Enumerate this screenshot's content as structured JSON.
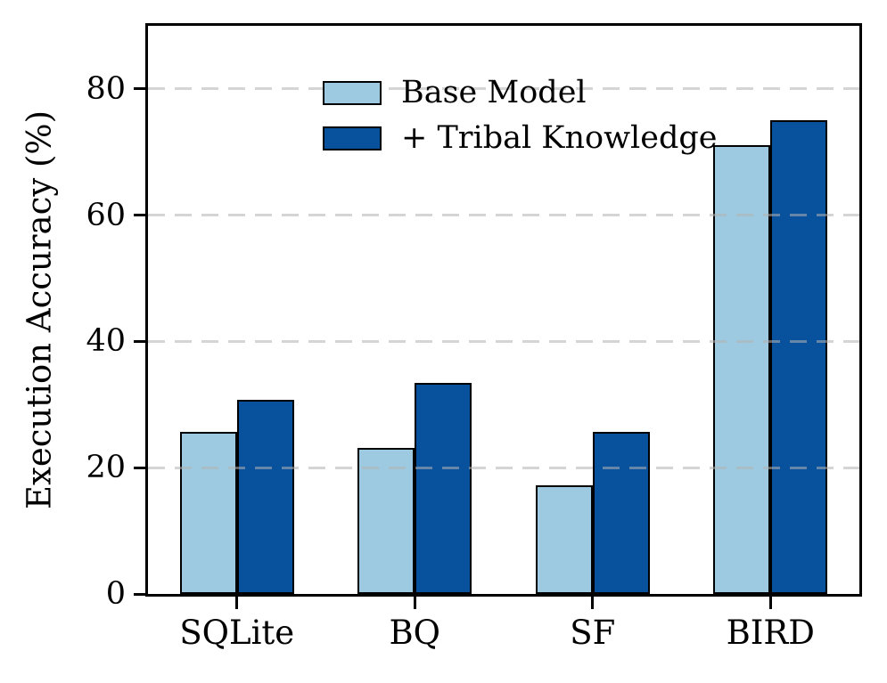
{
  "figure": {
    "background": "#ffffff",
    "axis_color": "#000000",
    "grid_color": "#d3d3d3"
  },
  "chart_data": {
    "type": "bar",
    "title": "",
    "xlabel": "",
    "ylabel": "Execution Accuracy (%)",
    "categories": [
      "SQLite",
      "BQ",
      "SF",
      "BIRD"
    ],
    "series": [
      {
        "name": "Base Model",
        "color": "#9ecae1",
        "values": [
          25.7,
          23.2,
          17.2,
          71.1
        ]
      },
      {
        "name": "+ Tribal Knowledge",
        "color": "#08519c",
        "values": [
          30.8,
          33.5,
          25.7,
          75.0
        ]
      }
    ],
    "bar_edge_color": "#000000",
    "ylim": [
      0,
      90
    ],
    "yticks": [
      0,
      20,
      40,
      60,
      80
    ],
    "grid": "horizontal dashed lines at yticks, light gray, drawn above bars",
    "legend_position": "upper left, no frame"
  }
}
